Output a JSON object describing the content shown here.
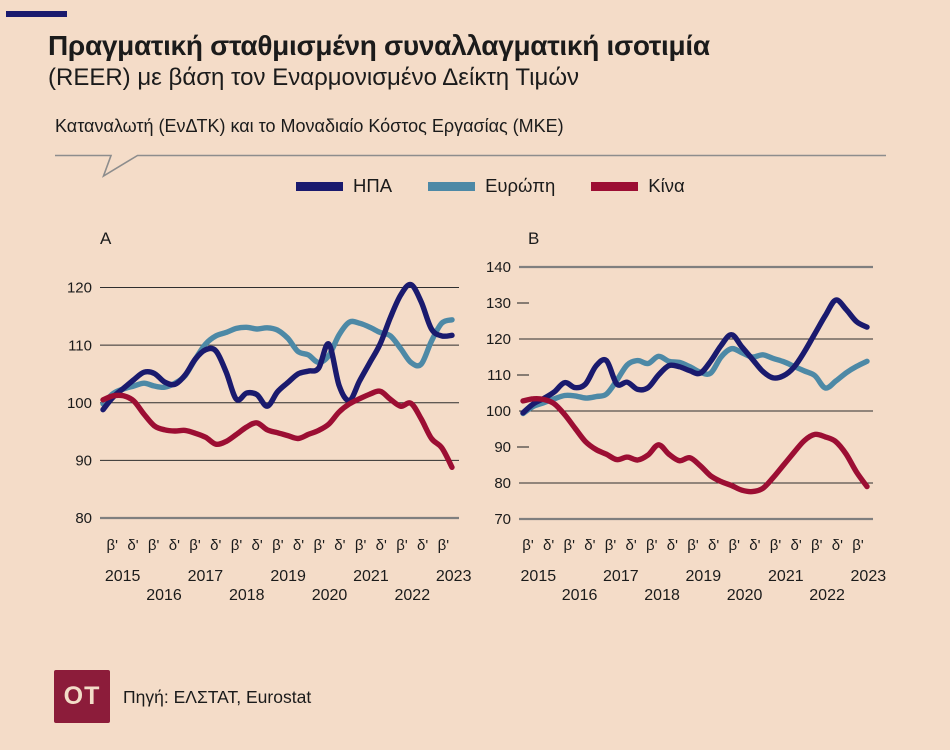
{
  "page": {
    "background": "#f4dcc8"
  },
  "header": {
    "accent_dash_color": "#1a1a6e",
    "title": "Πραγματική σταθμισμένη συναλλαγματική ισοτιμία",
    "subtitle": "(REER) με βάση τον Εναρμονισμένο Δείκτη Τιμών",
    "subtitle2": "Καταναλωτή (ΕνΔΤΚ) και το Μοναδιαίο Κόστος Εργασίας (ΜΚΕ)"
  },
  "legend": {
    "items": [
      {
        "label": "ΗΠΑ",
        "color": "#1a1a6e"
      },
      {
        "label": "Ευρώπη",
        "color": "#4d89a6"
      },
      {
        "label": "Κίνα",
        "color": "#9c0e33"
      }
    ]
  },
  "footer": {
    "logo_text": "OT",
    "logo_bg": "#8c1c3a",
    "source": "Πηγή: ΕΛΣΤΑΤ, Eurostat"
  },
  "chart_data": [
    {
      "type": "line",
      "panel_label": "A",
      "x_note": "quarterly, 2015Q1 - 2023Q3",
      "ylim": [
        80,
        120
      ],
      "yticks": [
        120,
        110,
        100,
        90,
        80
      ],
      "x_quarter_labels": [
        "β'",
        "δ'",
        "β'",
        "δ'",
        "β'",
        "δ'",
        "β'",
        "δ'",
        "β'",
        "δ'",
        "β'",
        "δ'",
        "β'",
        "δ'",
        "β'",
        "δ'",
        "β'"
      ],
      "x_year_labels": [
        "2015",
        "2016",
        "2017",
        "2018",
        "2019",
        "2020",
        "2021",
        "2022",
        "2023"
      ],
      "series": [
        {
          "name": "ΗΠΑ",
          "color": "#1a1a6e",
          "values": [
            98.8,
            101.0,
            102.5,
            104.0,
            105.3,
            105.1,
            103.6,
            103.2,
            104.8,
            107.6,
            109.2,
            109.0,
            105.3,
            100.6,
            101.7,
            101.4,
            99.4,
            101.9,
            103.5,
            105.0,
            105.5,
            106.0,
            110.2,
            103.0,
            100.4,
            103.8,
            107.0,
            110.2,
            114.8,
            118.7,
            120.5,
            117.5,
            112.8,
            111.6,
            111.7
          ]
        },
        {
          "name": "Ευρώπη",
          "color": "#4d89a6",
          "values": [
            99.8,
            101.6,
            102.4,
            102.9,
            103.4,
            102.9,
            102.7,
            103.4,
            104.7,
            107.6,
            110.2,
            111.6,
            112.2,
            112.9,
            113.1,
            112.8,
            113.0,
            112.6,
            111.2,
            108.9,
            108.3,
            107.0,
            108.2,
            111.8,
            114.0,
            113.8,
            113.1,
            112.2,
            111.6,
            109.4,
            107.0,
            106.7,
            110.7,
            113.8,
            114.4
          ]
        },
        {
          "name": "Κίνα",
          "color": "#9c0e33",
          "values": [
            100.5,
            101.2,
            101.2,
            100.3,
            98.0,
            96.0,
            95.3,
            95.1,
            95.2,
            94.7,
            94.0,
            92.8,
            93.3,
            94.5,
            95.8,
            96.5,
            95.3,
            94.8,
            94.3,
            93.8,
            94.5,
            95.2,
            96.3,
            98.4,
            99.8,
            100.7,
            101.5,
            102.0,
            100.6,
            99.4,
            99.9,
            97.2,
            93.8,
            92.2,
            88.8
          ]
        }
      ]
    },
    {
      "type": "line",
      "panel_label": "B",
      "x_note": "quarterly, 2015Q1 - 2023Q2",
      "ylim": [
        70,
        140
      ],
      "yticks": [
        140,
        130,
        120,
        110,
        100,
        90,
        80,
        70
      ],
      "x_quarter_labels": [
        "β'",
        "δ'",
        "β'",
        "δ'",
        "β'",
        "δ'",
        "β'",
        "δ'",
        "β'",
        "δ'",
        "β'",
        "δ'",
        "β'",
        "δ'",
        "β'",
        "δ'",
        "β'"
      ],
      "x_year_labels": [
        "2015",
        "2016",
        "2017",
        "2018",
        "2019",
        "2020",
        "2021",
        "2022",
        "2023"
      ],
      "series": [
        {
          "name": "ΗΠΑ",
          "color": "#1a1a6e",
          "values": [
            99.5,
            102.0,
            103.5,
            105.3,
            107.9,
            106.5,
            107.5,
            112.5,
            114.0,
            107.5,
            108.0,
            106.0,
            106.5,
            110.0,
            112.6,
            112.3,
            111.2,
            110.5,
            113.8,
            118.2,
            121.2,
            117.8,
            114.4,
            111.0,
            109.2,
            109.8,
            112.2,
            116.5,
            121.5,
            126.5,
            130.8,
            128.2,
            124.8,
            123.3
          ]
        },
        {
          "name": "Ευρώπη",
          "color": "#4d89a6",
          "values": [
            99.3,
            101.3,
            102.3,
            103.4,
            104.3,
            104.2,
            103.6,
            104.0,
            104.7,
            108.5,
            112.8,
            114.0,
            113.2,
            115.2,
            113.8,
            113.5,
            112.3,
            110.8,
            110.5,
            115.0,
            117.3,
            116.2,
            115.0,
            115.6,
            114.6,
            113.7,
            112.4,
            111.1,
            109.8,
            106.4,
            108.3,
            110.6,
            112.4,
            113.8
          ]
        },
        {
          "name": "Κίνα",
          "color": "#9c0e33",
          "values": [
            102.8,
            103.4,
            103.2,
            102.0,
            99.0,
            95.2,
            91.5,
            89.3,
            88.0,
            86.5,
            87.2,
            86.4,
            87.8,
            90.6,
            88.0,
            86.2,
            87.0,
            84.8,
            82.0,
            80.4,
            79.3,
            78.0,
            77.6,
            78.5,
            81.5,
            85.0,
            88.5,
            91.8,
            93.5,
            92.8,
            91.5,
            88.0,
            83.0,
            79.0
          ]
        }
      ]
    }
  ]
}
